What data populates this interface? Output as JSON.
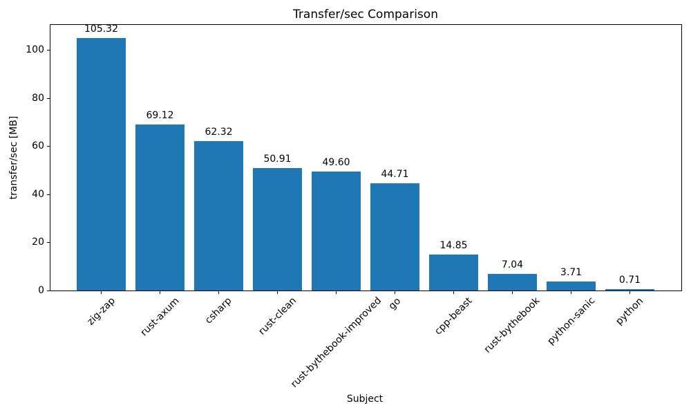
{
  "chart_data": {
    "type": "bar",
    "title": "Transfer/sec Comparison",
    "xlabel": "Subject",
    "ylabel": "transfer/sec [MB]",
    "categories": [
      "zig-zap",
      "rust-axum",
      "csharp",
      "rust-clean",
      "rust-bythebook-improved",
      "go",
      "cpp-beast",
      "rust-bythebook",
      "python-sanic",
      "python"
    ],
    "values": [
      105.32,
      69.12,
      62.32,
      50.91,
      49.6,
      44.71,
      14.85,
      7.04,
      3.71,
      0.71
    ],
    "value_labels": [
      "105.32",
      "69.12",
      "62.32",
      "50.91",
      "49.60",
      "44.71",
      "14.85",
      "7.04",
      "3.71",
      "0.71"
    ],
    "yticks": [
      0,
      20,
      40,
      60,
      80,
      100
    ],
    "ytick_labels": [
      "0",
      "20",
      "40",
      "60",
      "80",
      "100"
    ],
    "ylim": [
      0,
      110.95
    ],
    "bar_color": "#1f77b4",
    "axis_color": "#000000",
    "grid": false,
    "legend": null
  }
}
